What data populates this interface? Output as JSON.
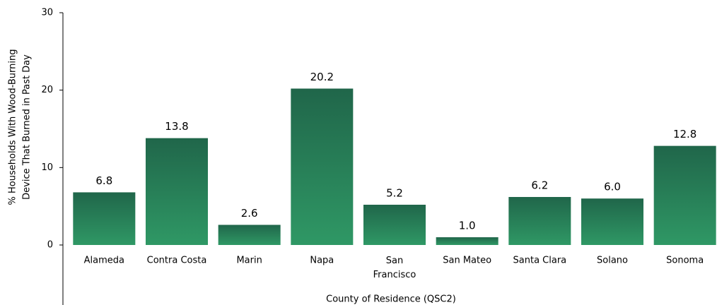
{
  "chart_data": {
    "type": "bar",
    "categories": [
      "Alameda",
      "Contra Costa",
      "Marin",
      "Napa",
      "San Francisco",
      "San Mateo",
      "Santa Clara",
      "Solano",
      "Sonoma"
    ],
    "values": [
      6.8,
      13.8,
      2.6,
      20.2,
      5.2,
      1.0,
      6.2,
      6.0,
      12.8
    ],
    "value_labels": [
      "6.8",
      "13.8",
      "2.6",
      "20.2",
      "5.2",
      "1.0",
      "6.2",
      "6.0",
      "12.8"
    ],
    "gradient": [
      "#20664a",
      "#2f9865"
    ],
    "ylim": [
      0,
      30
    ],
    "yticks": [
      0,
      10,
      20,
      30
    ],
    "ylabel": [
      "% Households With Wood-Burning",
      "Device That Burned in Past Day"
    ],
    "xlabel": "County of Residence (QSC2)"
  }
}
